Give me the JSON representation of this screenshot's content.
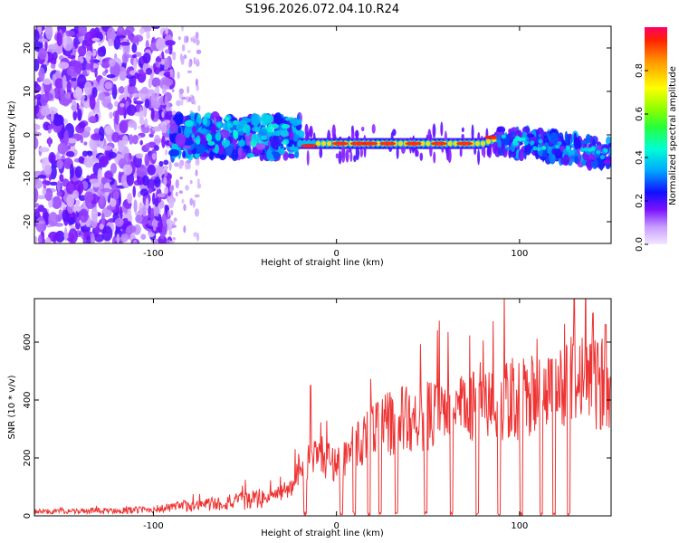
{
  "page_title": "S196.2026.072.04.10.R24",
  "chart_data": [
    {
      "type": "heatmap",
      "title": "S196.2026.072.04.10.R24",
      "xlabel": "Height of straight line (km)",
      "ylabel": "Frequency (Hz)",
      "xlim": [
        -165,
        150
      ],
      "ylim": [
        -25,
        25
      ],
      "xticks": [
        -100,
        0,
        100
      ],
      "yticks": [
        -20,
        -10,
        0,
        10,
        20
      ],
      "colorbar": {
        "label": "Normalized spectral amplitude",
        "range": [
          0.0,
          1.0
        ],
        "ticks": [
          0.0,
          0.2,
          0.4,
          0.6,
          0.8
        ],
        "colormap": "rainbow (light violet to red)"
      },
      "regions": [
        {
          "x_range": [
            -165,
            -90
          ],
          "freq_range": [
            -25,
            25
          ],
          "amplitude": "0.1-0.3",
          "description": "scattered noise"
        },
        {
          "x_range": [
            -90,
            -20
          ],
          "freq_range": [
            -5,
            4
          ],
          "amplitude": "0.2-0.4",
          "description": "band centered near 0 Hz"
        },
        {
          "x_range": [
            -20,
            88
          ],
          "freq_center": -2,
          "amplitude": "1.0",
          "description": "narrow peak line"
        },
        {
          "x_range": [
            88,
            150
          ],
          "freq_range": [
            -5,
            1
          ],
          "amplitude": "0.2-0.4",
          "description": "band trending down"
        }
      ]
    },
    {
      "type": "line",
      "xlabel": "Height of straight line (km)",
      "ylabel": "SNR (10 * v/v)",
      "xlim": [
        -165,
        150
      ],
      "ylim": [
        0,
        750
      ],
      "xticks": [
        -100,
        0,
        100
      ],
      "yticks": [
        0,
        200,
        400,
        600
      ],
      "series": [
        {
          "name": "SNR",
          "color": "#ee3333",
          "x": [
            -165,
            -150,
            -120,
            -100,
            -80,
            -60,
            -40,
            -25,
            -20,
            -10,
            0,
            10,
            20,
            30,
            40,
            60,
            80,
            90,
            100,
            110,
            120,
            130,
            140,
            150
          ],
          "y": [
            15,
            15,
            18,
            22,
            35,
            45,
            60,
            90,
            180,
            210,
            180,
            240,
            300,
            320,
            340,
            350,
            380,
            390,
            400,
            420,
            420,
            480,
            450,
            470
          ],
          "peaks": [
            [
              -14,
              450
            ],
            [
              117,
              540
            ],
            [
              130,
              750
            ],
            [
              140,
              700
            ],
            [
              147,
              660
            ]
          ],
          "dropouts_x": [
            -18,
            2,
            9,
            17,
            23,
            32,
            48,
            62,
            76,
            88,
            100,
            111,
            118,
            126
          ]
        }
      ]
    }
  ]
}
